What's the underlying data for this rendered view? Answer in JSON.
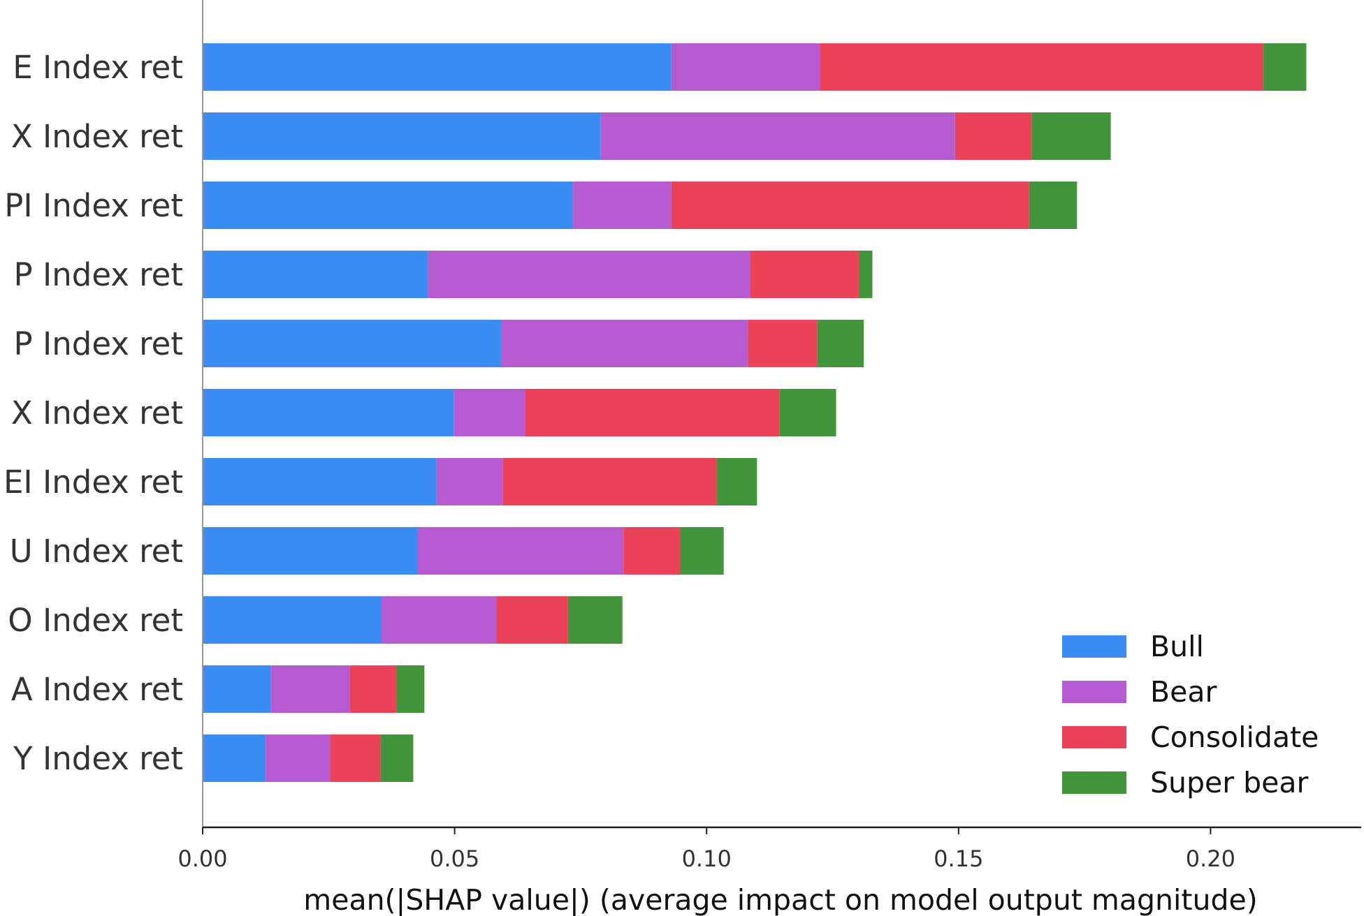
{
  "chart_data": {
    "type": "bar",
    "orientation": "horizontal",
    "stacked": true,
    "categories": [
      "E Index ret",
      "X Index ret",
      "PI Index ret",
      "P Index ret",
      "P Index ret",
      "X Index ret",
      "EI Index ret",
      "U Index ret",
      "O Index ret",
      "A Index ret",
      "Y Index ret"
    ],
    "series": [
      {
        "name": "Bull",
        "color": "#3b8cf2",
        "values": [
          0.093,
          0.079,
          0.0735,
          0.0447,
          0.0592,
          0.0498,
          0.0464,
          0.0427,
          0.0355,
          0.0135,
          0.0125
        ]
      },
      {
        "name": "Bear",
        "color": "#b55ad1",
        "values": [
          0.0295,
          0.0703,
          0.0195,
          0.064,
          0.049,
          0.0142,
          0.0132,
          0.0408,
          0.0228,
          0.0157,
          0.0128
        ]
      },
      {
        "name": "Consolidate",
        "color": "#ec4257",
        "values": [
          0.088,
          0.0152,
          0.071,
          0.0215,
          0.0138,
          0.0505,
          0.0424,
          0.0112,
          0.0142,
          0.0092,
          0.01
        ]
      },
      {
        "name": "Super bear",
        "color": "#43953b",
        "values": [
          0.0085,
          0.0157,
          0.0095,
          0.0027,
          0.0092,
          0.0112,
          0.008,
          0.0087,
          0.0108,
          0.0056,
          0.0065
        ]
      }
    ],
    "xlabel": "mean(|SHAP value|) (average impact on model output magnitude)",
    "ylabel": "",
    "xlim": [
      0,
      0.23
    ],
    "xticks": [
      0.0,
      0.05,
      0.1,
      0.15,
      0.2
    ],
    "xtick_labels": [
      "0.00",
      "0.05",
      "0.10",
      "0.15",
      "0.20"
    ],
    "grid": false,
    "legend": {
      "placement": "bottom-right",
      "entries": [
        "Bull",
        "Bear",
        "Consolidate",
        "Super bear"
      ]
    }
  }
}
